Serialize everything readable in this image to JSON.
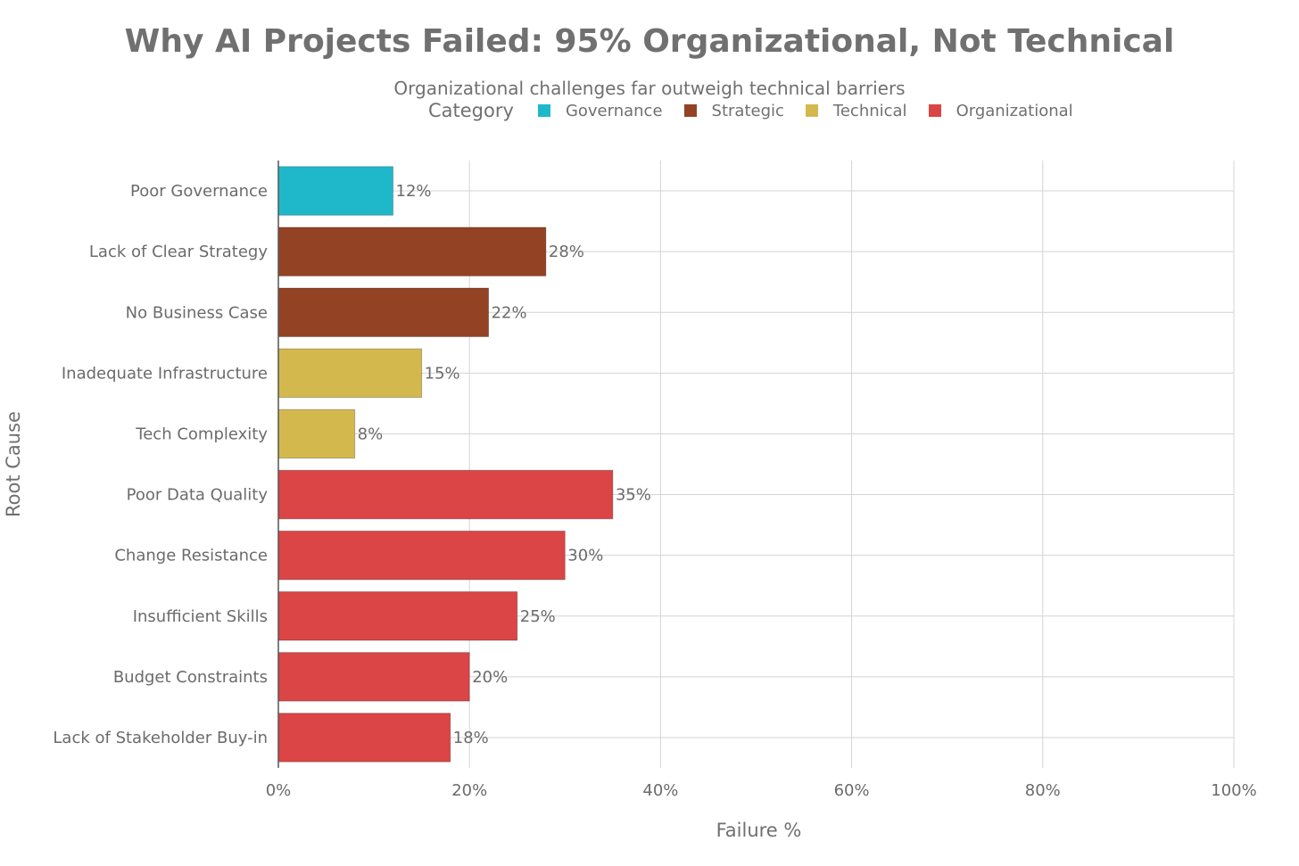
{
  "chart_data": {
    "type": "bar",
    "orientation": "horizontal",
    "title": "Why AI Projects Failed: 95% Organizational, Not Technical",
    "subtitle": "Organizational challenges far outweigh technical barriers",
    "xlabel": "Failure %",
    "ylabel": "Root Cause",
    "xlim": [
      0,
      100
    ],
    "x_ticks": [
      "0%",
      "20%",
      "40%",
      "60%",
      "80%",
      "100%"
    ],
    "legend": {
      "title": "Category",
      "placement": "top",
      "entries": [
        {
          "name": "Governance",
          "color": "#1fb8cb"
        },
        {
          "name": "Strategic",
          "color": "#944224"
        },
        {
          "name": "Technical",
          "color": "#d3b94d"
        },
        {
          "name": "Organizational",
          "color": "#db4545"
        }
      ]
    },
    "categories": [
      "Poor Governance",
      "Lack of Clear Strategy",
      "No Business Case",
      "Inadequate Infrastructure",
      "Tech Complexity",
      "Poor Data Quality",
      "Change Resistance",
      "Insufficient Skills",
      "Budget Constraints",
      "Lack of Stakeholder Buy-in"
    ],
    "values": [
      12,
      28,
      22,
      15,
      8,
      35,
      30,
      25,
      20,
      18
    ],
    "value_labels": [
      "12%",
      "28%",
      "22%",
      "15%",
      "8%",
      "35%",
      "30%",
      "25%",
      "20%",
      "18%"
    ],
    "bar_category": [
      "Governance",
      "Strategic",
      "Strategic",
      "Technical",
      "Technical",
      "Organizational",
      "Organizational",
      "Organizational",
      "Organizational",
      "Organizational"
    ]
  }
}
